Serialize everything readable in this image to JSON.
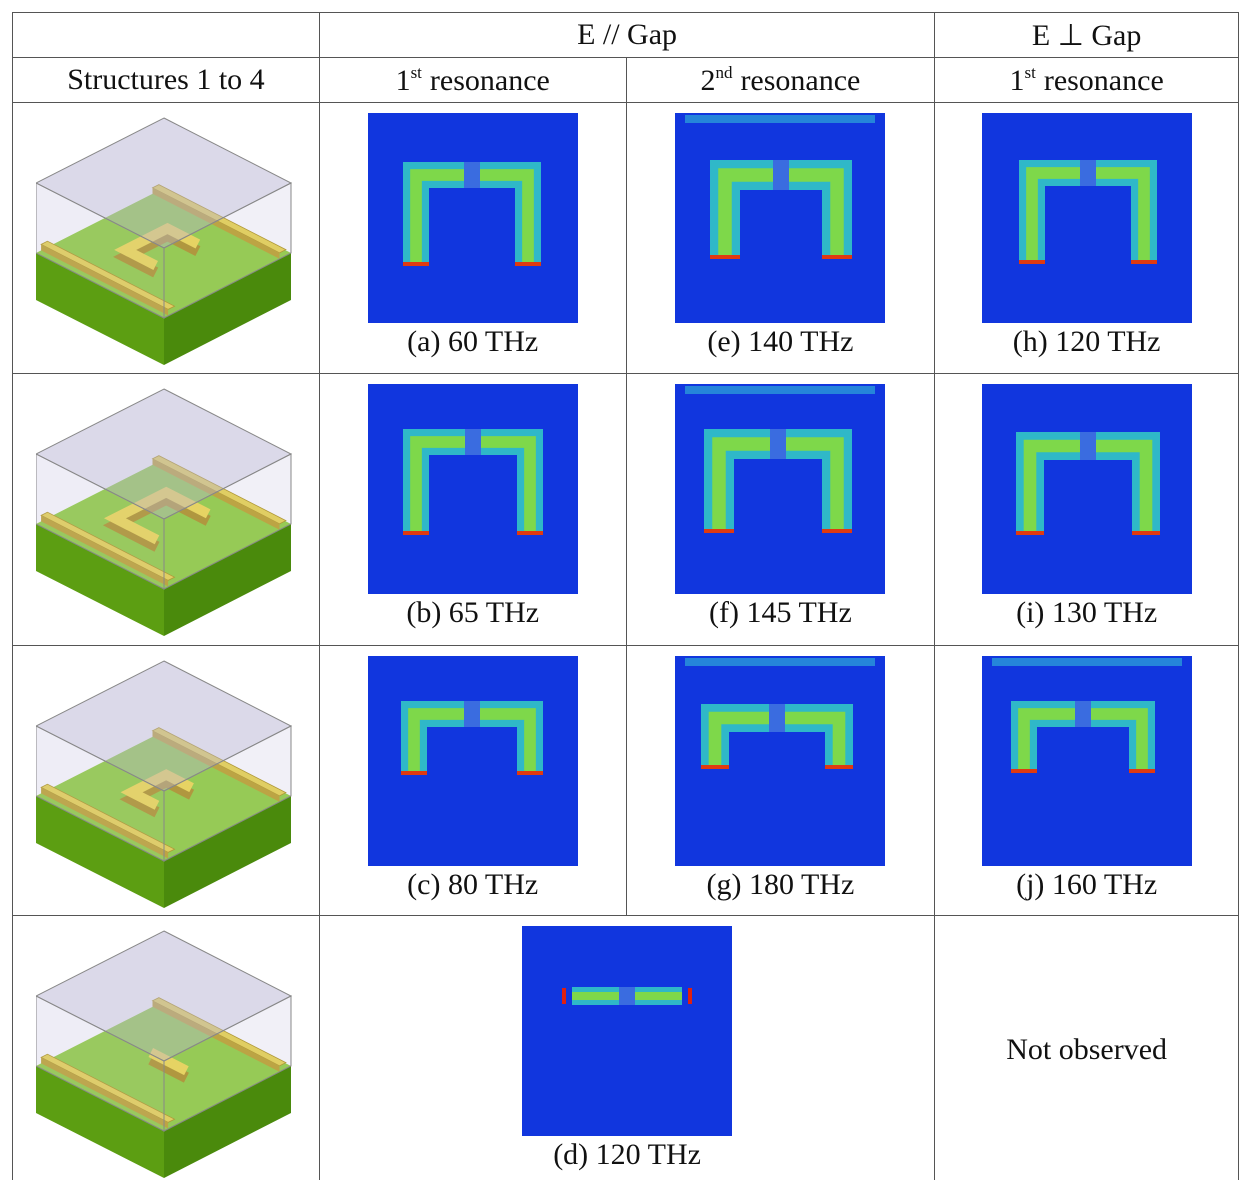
{
  "header": {
    "row1": {
      "e_parallel": "E // Gap",
      "e_perpendicular": "E ⊥ Gap"
    },
    "row2": {
      "structures": "Structures 1 to 4",
      "columns": [
        {
          "number": "1",
          "suffix": "st",
          "text": "resonance"
        },
        {
          "number": "2",
          "suffix": "nd",
          "text": "resonance"
        },
        {
          "number": "1",
          "suffix": "st",
          "text": "resonance"
        }
      ]
    }
  },
  "rows": [
    {
      "captions": [
        "(a) 60 THz",
        "(e) 140 THz",
        "(h) 120 THz"
      ]
    },
    {
      "captions": [
        "(b) 65 THz",
        "(f) 145 THz",
        "(i) 130 THz"
      ]
    },
    {
      "captions": [
        "(c) 80 THz",
        "(g) 180 THz",
        "(j) 160 THz"
      ]
    },
    {
      "captions": [
        "(d) 120 THz"
      ],
      "note": "Not observed"
    }
  ]
}
